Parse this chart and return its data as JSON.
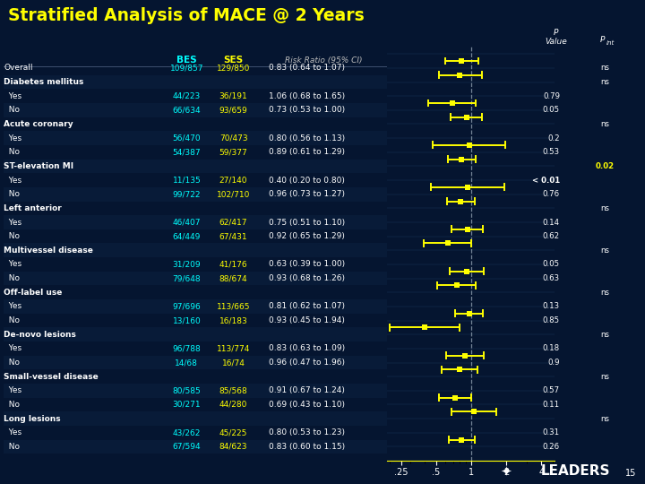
{
  "title": "Stratified Analysis of MACE @ 2 Years",
  "bg_color": "#051530",
  "yellow": "#FFFF00",
  "cyan": "#00FFFF",
  "white": "#FFFFFF",
  "grid_color": "#1a3a5c",
  "rows": [
    {
      "label": "Overall",
      "indent": 0,
      "is_header": false,
      "bes": "109/857",
      "ses": "129/850",
      "rr_text": "0.83 (0.64 to 1.07)",
      "rr": 0.83,
      "lo": 0.64,
      "hi": 1.07,
      "pval": "",
      "pint": "ns"
    },
    {
      "label": "Diabetes mellitus",
      "indent": 0,
      "is_header": true,
      "bes": "",
      "ses": "",
      "rr_text": "",
      "rr": null,
      "lo": null,
      "hi": null,
      "pval": "",
      "pint": "ns"
    },
    {
      "label": "  Yes",
      "indent": 1,
      "is_header": false,
      "bes": "44/223",
      "ses": "36/191",
      "rr_text": "1.06 (0.68 to 1.65)",
      "rr": 1.06,
      "lo": 0.68,
      "hi": 1.65,
      "pval": "0.79",
      "pint": ""
    },
    {
      "label": "  No",
      "indent": 1,
      "is_header": false,
      "bes": "66/634",
      "ses": "93/659",
      "rr_text": "0.73 (0.53 to 1.00)",
      "rr": 0.73,
      "lo": 0.53,
      "hi": 1.0,
      "pval": "0.05",
      "pint": ""
    },
    {
      "label": "Acute coronary",
      "indent": 0,
      "is_header": true,
      "bes": "",
      "ses": "",
      "rr_text": "",
      "rr": null,
      "lo": null,
      "hi": null,
      "pval": "",
      "pint": "ns"
    },
    {
      "label": "  Yes",
      "indent": 1,
      "is_header": false,
      "bes": "56/470",
      "ses": "70/473",
      "rr_text": "0.80 (0.56 to 1.13)",
      "rr": 0.8,
      "lo": 0.56,
      "hi": 1.13,
      "pval": "0.2",
      "pint": ""
    },
    {
      "label": "  No",
      "indent": 1,
      "is_header": false,
      "bes": "54/387",
      "ses": "59/377",
      "rr_text": "0.89 (0.61 to 1.29)",
      "rr": 0.89,
      "lo": 0.61,
      "hi": 1.29,
      "pval": "0.53",
      "pint": ""
    },
    {
      "label": "ST-elevation MI",
      "indent": 0,
      "is_header": true,
      "bes": "",
      "ses": "",
      "rr_text": "",
      "rr": null,
      "lo": null,
      "hi": null,
      "pval": "",
      "pint": "0.02"
    },
    {
      "label": "  Yes",
      "indent": 1,
      "is_header": false,
      "bes": "11/135",
      "ses": "27/140",
      "rr_text": "0.40 (0.20 to 0.80)",
      "rr": 0.4,
      "lo": 0.2,
      "hi": 0.8,
      "pval": "< 0.01",
      "pint": ""
    },
    {
      "label": "  No",
      "indent": 1,
      "is_header": false,
      "bes": "99/722",
      "ses": "102/710",
      "rr_text": "0.96 (0.73 to 1.27)",
      "rr": 0.96,
      "lo": 0.73,
      "hi": 1.27,
      "pval": "0.76",
      "pint": ""
    },
    {
      "label": "Left anterior",
      "indent": 0,
      "is_header": true,
      "bes": "",
      "ses": "",
      "rr_text": "",
      "rr": null,
      "lo": null,
      "hi": null,
      "pval": "",
      "pint": "ns"
    },
    {
      "label": "  Yes",
      "indent": 1,
      "is_header": false,
      "bes": "46/407",
      "ses": "62/417",
      "rr_text": "0.75 (0.51 to 1.10)",
      "rr": 0.75,
      "lo": 0.51,
      "hi": 1.1,
      "pval": "0.14",
      "pint": ""
    },
    {
      "label": "  No",
      "indent": 1,
      "is_header": false,
      "bes": "64/449",
      "ses": "67/431",
      "rr_text": "0.92 (0.65 to 1.29)",
      "rr": 0.92,
      "lo": 0.65,
      "hi": 1.29,
      "pval": "0.62",
      "pint": ""
    },
    {
      "label": "Multivessel disease",
      "indent": 0,
      "is_header": true,
      "bes": "",
      "ses": "",
      "rr_text": "",
      "rr": null,
      "lo": null,
      "hi": null,
      "pval": "",
      "pint": "ns"
    },
    {
      "label": "  Yes",
      "indent": 1,
      "is_header": false,
      "bes": "31/209",
      "ses": "41/176",
      "rr_text": "0.63 (0.39 to 1.00)",
      "rr": 0.63,
      "lo": 0.39,
      "hi": 1.0,
      "pval": "0.05",
      "pint": ""
    },
    {
      "label": "  No",
      "indent": 1,
      "is_header": false,
      "bes": "79/648",
      "ses": "88/674",
      "rr_text": "0.93 (0.68 to 1.26)",
      "rr": 0.93,
      "lo": 0.68,
      "hi": 1.26,
      "pval": "0.63",
      "pint": ""
    },
    {
      "label": "Off-label use",
      "indent": 0,
      "is_header": true,
      "bes": "",
      "ses": "",
      "rr_text": "",
      "rr": null,
      "lo": null,
      "hi": null,
      "pval": "",
      "pint": "ns"
    },
    {
      "label": "  Yes",
      "indent": 1,
      "is_header": false,
      "bes": "97/696",
      "ses": "113/665",
      "rr_text": "0.81 (0.62 to 1.07)",
      "rr": 0.81,
      "lo": 0.62,
      "hi": 1.07,
      "pval": "0.13",
      "pint": ""
    },
    {
      "label": "  No",
      "indent": 1,
      "is_header": false,
      "bes": "13/160",
      "ses": "16/183",
      "rr_text": "0.93 (0.45 to 1.94)",
      "rr": 0.93,
      "lo": 0.45,
      "hi": 1.94,
      "pval": "0.85",
      "pint": ""
    },
    {
      "label": "De-novo lesions",
      "indent": 0,
      "is_header": true,
      "bes": "",
      "ses": "",
      "rr_text": "",
      "rr": null,
      "lo": null,
      "hi": null,
      "pval": "",
      "pint": "ns"
    },
    {
      "label": "  Yes",
      "indent": 1,
      "is_header": false,
      "bes": "96/788",
      "ses": "113/774",
      "rr_text": "0.83 (0.63 to 1.09)",
      "rr": 0.83,
      "lo": 0.63,
      "hi": 1.09,
      "pval": "0.18",
      "pint": ""
    },
    {
      "label": "  No",
      "indent": 1,
      "is_header": false,
      "bes": "14/68",
      "ses": "16/74",
      "rr_text": "0.96 (0.47 to 1.96)",
      "rr": 0.96,
      "lo": 0.47,
      "hi": 1.96,
      "pval": "0.9",
      "pint": ""
    },
    {
      "label": "Small-vessel disease",
      "indent": 0,
      "is_header": true,
      "bes": "",
      "ses": "",
      "rr_text": "",
      "rr": null,
      "lo": null,
      "hi": null,
      "pval": "",
      "pint": "ns"
    },
    {
      "label": "  Yes",
      "indent": 1,
      "is_header": false,
      "bes": "80/585",
      "ses": "85/568",
      "rr_text": "0.91 (0.67 to 1.24)",
      "rr": 0.91,
      "lo": 0.67,
      "hi": 1.24,
      "pval": "0.57",
      "pint": ""
    },
    {
      "label": "  No",
      "indent": 1,
      "is_header": false,
      "bes": "30/271",
      "ses": "44/280",
      "rr_text": "0.69 (0.43 to 1.10)",
      "rr": 0.69,
      "lo": 0.43,
      "hi": 1.1,
      "pval": "0.11",
      "pint": ""
    },
    {
      "label": "Long lesions",
      "indent": 0,
      "is_header": true,
      "bes": "",
      "ses": "",
      "rr_text": "",
      "rr": null,
      "lo": null,
      "hi": null,
      "pval": "",
      "pint": "ns"
    },
    {
      "label": "  Yes",
      "indent": 1,
      "is_header": false,
      "bes": "43/262",
      "ses": "45/225",
      "rr_text": "0.80 (0.53 to 1.23)",
      "rr": 0.8,
      "lo": 0.53,
      "hi": 1.23,
      "pval": "0.31",
      "pint": ""
    },
    {
      "label": "  No",
      "indent": 1,
      "is_header": false,
      "bes": "67/594",
      "ses": "84/623",
      "rr_text": "0.83 (0.60 to 1.15)",
      "rr": 0.83,
      "lo": 0.6,
      "hi": 1.15,
      "pval": "0.26",
      "pint": ""
    }
  ]
}
